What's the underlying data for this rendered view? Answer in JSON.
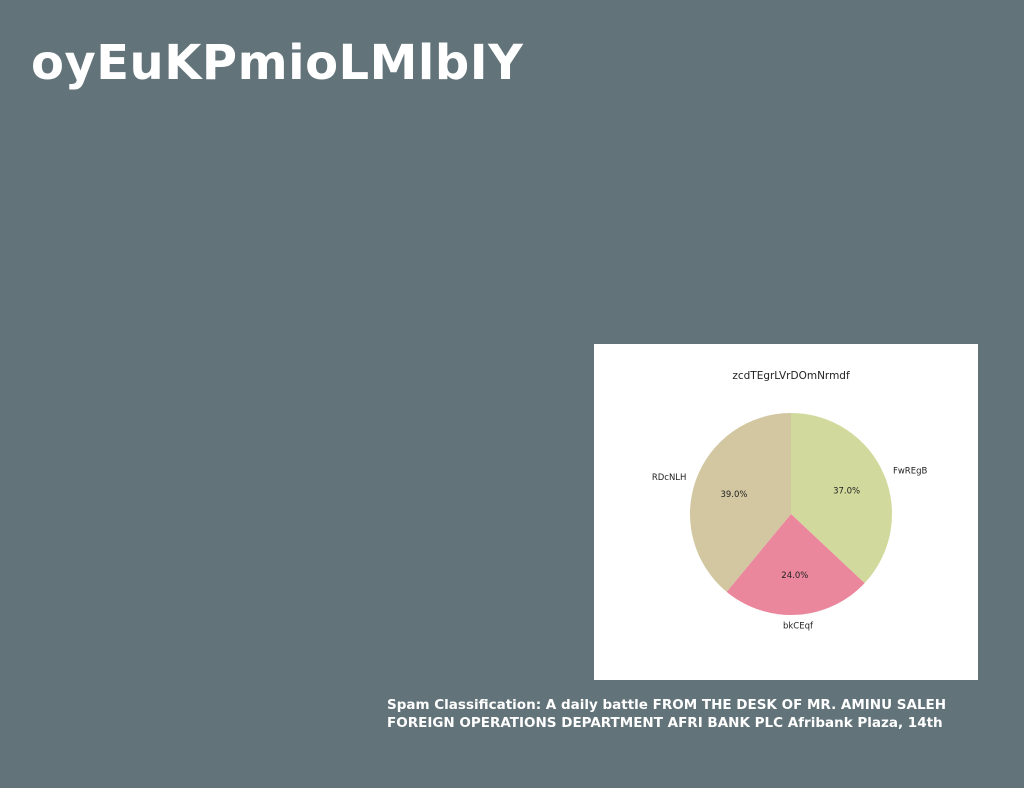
{
  "page": {
    "title": "oyEuKPmioLMlbIY",
    "caption": "Spam Classification: A daily battle FROM THE DESK OF MR. AMINU SALEH FOREIGN OPERATIONS DEPARTMENT AFRI BANK PLC Afribank Plaza, 14th",
    "background_color": "#627379"
  },
  "chart_data": {
    "type": "pie",
    "title": "zcdTEgrLVrDOmNrmdf",
    "start_angle_deg": 90,
    "direction": "clockwise",
    "slices": [
      {
        "label": "FwREgB",
        "value": 37.0,
        "pct_label": "37.0%",
        "color": "#d1da9c"
      },
      {
        "label": "bkCEqf",
        "value": 24.0,
        "pct_label": "24.0%",
        "color": "#eb879d"
      },
      {
        "label": "RDcNLH",
        "value": 39.0,
        "pct_label": "39.0%",
        "color": "#d2c7a1"
      }
    ]
  }
}
